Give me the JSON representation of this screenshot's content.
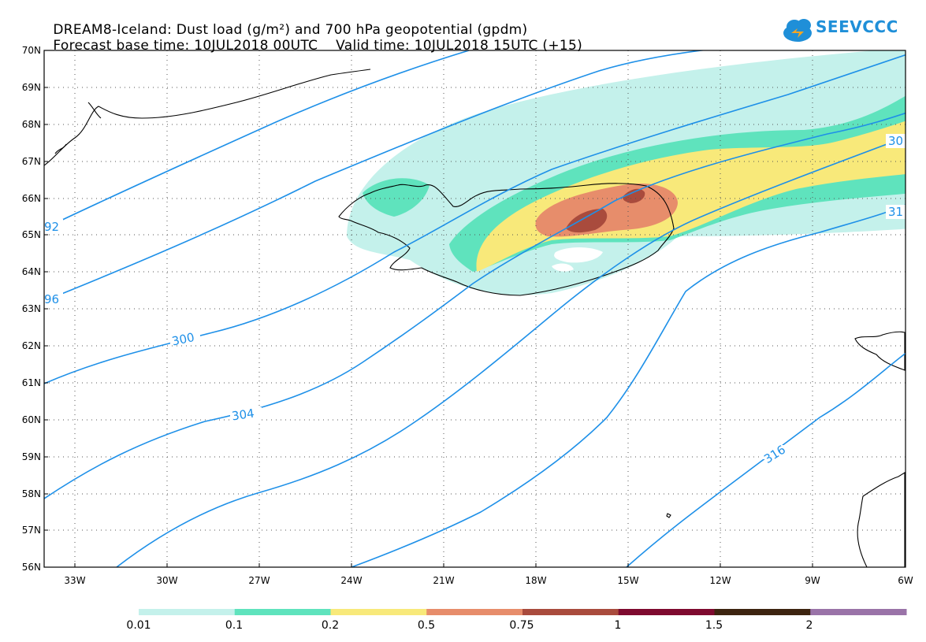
{
  "title": {
    "line1": "DREAM8-Iceland: Dust load (g/m²) and 700 hPa geopotential (gpdm)",
    "line2_left": "Forecast base time: 10JUL2018 00UTC",
    "line2_right": "Valid time: 10JUL2018 15UTC (+15)"
  },
  "logo": {
    "text": "SEEVCCC",
    "icon": "cloud-logo-icon",
    "color": "#1f8fd8"
  },
  "map": {
    "lat_labels": [
      "70N",
      "69N",
      "68N",
      "67N",
      "66N",
      "65N",
      "64N",
      "63N",
      "62N",
      "61N",
      "60N",
      "59N",
      "58N",
      "57N",
      "56N"
    ],
    "lon_labels": [
      "33W",
      "30W",
      "27W",
      "24W",
      "21W",
      "18W",
      "15W",
      "12W",
      "9W",
      "6W"
    ],
    "contour_color": "#1e90e8",
    "contour_labels": [
      "92",
      "96",
      "300",
      "304",
      "316",
      "30",
      "31"
    ]
  },
  "legend": {
    "labels": [
      "0.01",
      "0.1",
      "0.2",
      "0.5",
      "0.75",
      "1",
      "1.5",
      "2"
    ],
    "colors": [
      "#c4f1eb",
      "#5fe3bd",
      "#f8e97a",
      "#e78d6b",
      "#a94b3d",
      "#7e0a2f",
      "#3d2410",
      "#9a73a8"
    ]
  }
}
